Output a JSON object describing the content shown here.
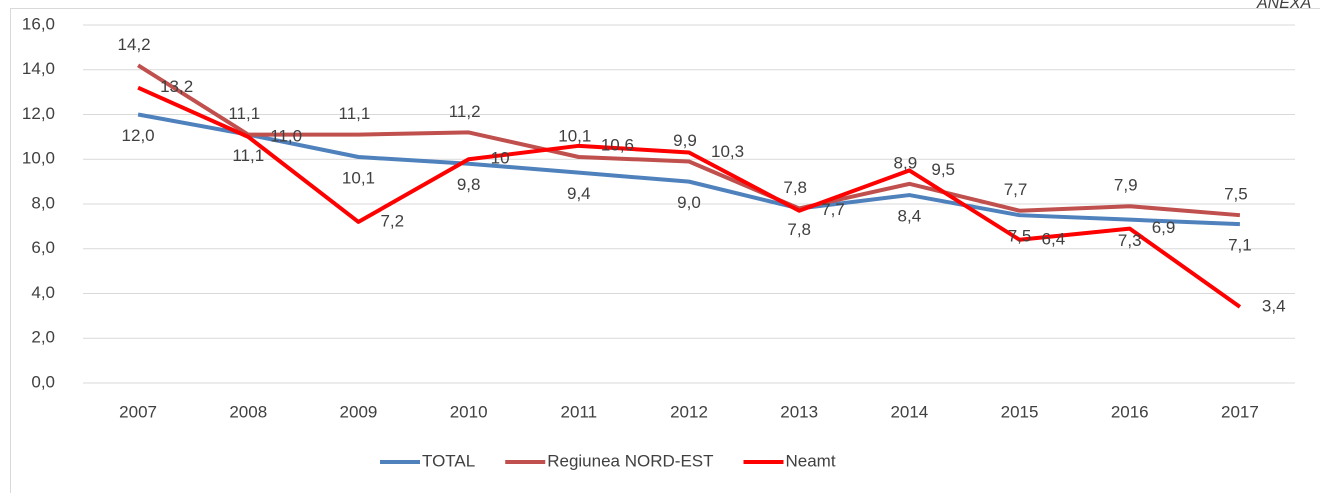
{
  "chart_data": {
    "type": "line",
    "annotation": "ANEXA",
    "categories": [
      "2007",
      "2008",
      "2009",
      "2010",
      "2011",
      "2012",
      "2013",
      "2014",
      "2015",
      "2016",
      "2017"
    ],
    "series": [
      {
        "name": "TOTAL",
        "color": "#4f81bd",
        "values": [
          12.0,
          11.1,
          10.1,
          9.8,
          9.4,
          9.0,
          7.8,
          8.4,
          7.5,
          7.3,
          7.1
        ],
        "value_labels": [
          "12,0",
          "11,1",
          "10,1",
          "9,8",
          "9,4",
          "9,0",
          "7,8",
          "8,4",
          "7,5",
          "7,3",
          "7,1"
        ]
      },
      {
        "name": "Regiunea NORD-EST",
        "color": "#c0504d",
        "values": [
          14.2,
          11.1,
          11.1,
          11.2,
          10.1,
          9.9,
          7.8,
          8.9,
          7.7,
          7.9,
          7.5
        ],
        "value_labels": [
          "14,2",
          "11,1",
          "11,1",
          "11,2",
          "10,1",
          "9,9",
          "7,8",
          "8,9",
          "7,7",
          "7,9",
          "7,5"
        ]
      },
      {
        "name": "Neamt",
        "color": "#ff0000",
        "values": [
          13.2,
          11.0,
          7.2,
          10.0,
          10.6,
          10.3,
          7.7,
          9.5,
          6.4,
          6.9,
          3.4
        ],
        "value_labels": [
          "13,2",
          "11,0",
          "7,2",
          "10",
          "10,6",
          "10,3",
          "7,7",
          "9,5",
          "6,4",
          "6,9",
          "3,4"
        ]
      }
    ],
    "ylim": [
      0,
      16
    ],
    "yticks": [
      {
        "value": 0,
        "label": "0,0"
      },
      {
        "value": 2,
        "label": "2,0"
      },
      {
        "value": 4,
        "label": "4,0"
      },
      {
        "value": 6,
        "label": "6,0"
      },
      {
        "value": 8,
        "label": "8,0"
      },
      {
        "value": 10,
        "label": "10,0"
      },
      {
        "value": 12,
        "label": "12,0"
      },
      {
        "value": 14,
        "label": "14,0"
      },
      {
        "value": 16,
        "label": "16,0"
      }
    ],
    "grid": true,
    "legend": "bottom"
  }
}
